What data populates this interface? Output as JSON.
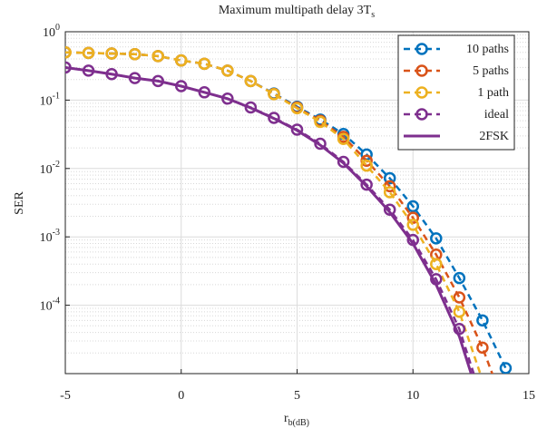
{
  "chart_data": {
    "type": "line",
    "title": "Maximum multipath delay 3T_s",
    "x_label": "r_b(dB)",
    "y_label": "SER",
    "x": [
      -5,
      -4,
      -3,
      -2,
      -1,
      0,
      1,
      2,
      3,
      4,
      5,
      6,
      7,
      8,
      9,
      10,
      11,
      12,
      13,
      14
    ],
    "series": [
      {
        "name": "10 paths",
        "color": "#0072bd",
        "dash": true,
        "marker": true,
        "values": [
          0.5,
          0.49,
          0.48,
          0.47,
          0.44,
          0.38,
          0.34,
          0.27,
          0.19,
          0.125,
          0.08,
          0.052,
          0.032,
          0.016,
          0.0072,
          0.0028,
          0.00095,
          0.00025,
          6e-05,
          1.2e-05
        ]
      },
      {
        "name": "5 paths",
        "color": "#d95319",
        "dash": true,
        "marker": true,
        "values": [
          0.5,
          0.49,
          0.48,
          0.47,
          0.44,
          0.38,
          0.34,
          0.27,
          0.19,
          0.123,
          0.078,
          0.05,
          0.029,
          0.013,
          0.0055,
          0.0019,
          0.00055,
          0.00013,
          2.4e-05,
          3e-06
        ]
      },
      {
        "name": "1 path",
        "color": "#edb120",
        "dash": true,
        "marker": true,
        "values": [
          0.5,
          0.49,
          0.48,
          0.47,
          0.44,
          0.38,
          0.34,
          0.27,
          0.19,
          0.122,
          0.076,
          0.048,
          0.027,
          0.011,
          0.0045,
          0.0015,
          0.0004,
          8e-05,
          8e-06,
          null
        ]
      },
      {
        "name": "ideal",
        "color": "#7e2f8e",
        "dash": true,
        "marker": true,
        "values": [
          0.3,
          0.27,
          0.24,
          0.21,
          0.19,
          0.16,
          0.13,
          0.105,
          0.078,
          0.055,
          0.037,
          0.023,
          0.0125,
          0.0058,
          0.0025,
          0.0009,
          0.00024,
          4.5e-05,
          4e-06,
          null
        ]
      },
      {
        "name": "2FSK",
        "color": "#7e2f8e",
        "dash": false,
        "marker": false,
        "values": [
          0.3,
          0.27,
          0.24,
          0.21,
          0.19,
          0.16,
          0.13,
          0.105,
          0.077,
          0.054,
          0.036,
          0.022,
          0.012,
          0.0055,
          0.0023,
          0.0008,
          0.0002,
          3.5e-05,
          3e-06,
          null
        ]
      }
    ],
    "xlim": [
      -5,
      15
    ],
    "xticks": [
      -5,
      0,
      5,
      10,
      15
    ],
    "ylim": [
      1e-05,
      1
    ],
    "log_y": true,
    "grid": true,
    "minor_grid": true,
    "yticks": [
      {
        "value": 0.0001,
        "label": "10^-4"
      },
      {
        "value": 0.001,
        "label": "10^-3"
      },
      {
        "value": 0.01,
        "label": "10^-2"
      },
      {
        "value": 0.1,
        "label": "10^-1"
      },
      {
        "value": 1,
        "label": "10^0"
      }
    ],
    "legend": "top-right"
  }
}
